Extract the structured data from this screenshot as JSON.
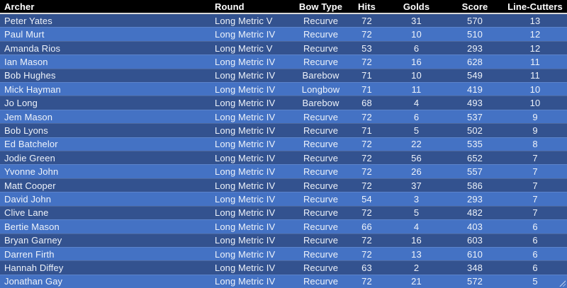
{
  "chart_data": {
    "type": "table",
    "columns": [
      {
        "key": "archer",
        "label": "Archer",
        "align": "left"
      },
      {
        "key": "round",
        "label": "Round",
        "align": "left"
      },
      {
        "key": "bow_type",
        "label": "Bow Type",
        "align": "center"
      },
      {
        "key": "hits",
        "label": "Hits",
        "align": "center"
      },
      {
        "key": "golds",
        "label": "Golds",
        "align": "center"
      },
      {
        "key": "score",
        "label": "Score",
        "align": "center"
      },
      {
        "key": "line_cutters",
        "label": "Line-Cutters",
        "align": "center"
      }
    ],
    "rows": [
      {
        "archer": "Peter Yates",
        "round": "Long Metric V",
        "bow_type": "Recurve",
        "hits": 72,
        "golds": 31,
        "score": 570,
        "line_cutters": 13
      },
      {
        "archer": "Paul Murt",
        "round": "Long Metric IV",
        "bow_type": "Recurve",
        "hits": 72,
        "golds": 10,
        "score": 510,
        "line_cutters": 12
      },
      {
        "archer": "Amanda Rios",
        "round": "Long Metric V",
        "bow_type": "Recurve",
        "hits": 53,
        "golds": 6,
        "score": 293,
        "line_cutters": 12
      },
      {
        "archer": "Ian Mason",
        "round": "Long Metric IV",
        "bow_type": "Recurve",
        "hits": 72,
        "golds": 16,
        "score": 628,
        "line_cutters": 11
      },
      {
        "archer": "Bob Hughes",
        "round": "Long Metric IV",
        "bow_type": "Barebow",
        "hits": 71,
        "golds": 10,
        "score": 549,
        "line_cutters": 11
      },
      {
        "archer": "Mick Hayman",
        "round": "Long Metric IV",
        "bow_type": "Longbow",
        "hits": 71,
        "golds": 11,
        "score": 419,
        "line_cutters": 10
      },
      {
        "archer": "Jo Long",
        "round": "Long Metric IV",
        "bow_type": "Barebow",
        "hits": 68,
        "golds": 4,
        "score": 493,
        "line_cutters": 10
      },
      {
        "archer": "Jem Mason",
        "round": "Long Metric IV",
        "bow_type": "Recurve",
        "hits": 72,
        "golds": 6,
        "score": 537,
        "line_cutters": 9
      },
      {
        "archer": "Bob Lyons",
        "round": "Long Metric IV",
        "bow_type": "Recurve",
        "hits": 71,
        "golds": 5,
        "score": 502,
        "line_cutters": 9
      },
      {
        "archer": "Ed Batchelor",
        "round": "Long Metric IV",
        "bow_type": "Recurve",
        "hits": 72,
        "golds": 22,
        "score": 535,
        "line_cutters": 8
      },
      {
        "archer": "Jodie Green",
        "round": "Long Metric IV",
        "bow_type": "Recurve",
        "hits": 72,
        "golds": 56,
        "score": 652,
        "line_cutters": 7
      },
      {
        "archer": "Yvonne John",
        "round": "Long Metric IV",
        "bow_type": "Recurve",
        "hits": 72,
        "golds": 26,
        "score": 557,
        "line_cutters": 7
      },
      {
        "archer": "Matt Cooper",
        "round": "Long Metric IV",
        "bow_type": "Recurve",
        "hits": 72,
        "golds": 37,
        "score": 586,
        "line_cutters": 7
      },
      {
        "archer": "David John",
        "round": "Long Metric IV",
        "bow_type": "Recurve",
        "hits": 54,
        "golds": 3,
        "score": 293,
        "line_cutters": 7
      },
      {
        "archer": "Clive Lane",
        "round": "Long Metric IV",
        "bow_type": "Recurve",
        "hits": 72,
        "golds": 5,
        "score": 482,
        "line_cutters": 7
      },
      {
        "archer": "Bertie Mason",
        "round": "Long Metric IV",
        "bow_type": "Recurve",
        "hits": 66,
        "golds": 4,
        "score": 403,
        "line_cutters": 6
      },
      {
        "archer": "Bryan Garney",
        "round": "Long Metric IV",
        "bow_type": "Recurve",
        "hits": 72,
        "golds": 16,
        "score": 603,
        "line_cutters": 6
      },
      {
        "archer": "Darren Firth",
        "round": "Long Metric IV",
        "bow_type": "Recurve",
        "hits": 72,
        "golds": 13,
        "score": 610,
        "line_cutters": 6
      },
      {
        "archer": "Hannah Diffey",
        "round": "Long Metric IV",
        "bow_type": "Recurve",
        "hits": 63,
        "golds": 2,
        "score": 348,
        "line_cutters": 6
      },
      {
        "archer": "Jonathan Gay",
        "round": "Long Metric IV",
        "bow_type": "Recurve",
        "hits": 72,
        "golds": 21,
        "score": 572,
        "line_cutters": 5
      }
    ],
    "layout": {
      "header_position": "top",
      "row_striping": "alternating, first data row dark",
      "grid": "subtle 1px light separators between rows"
    },
    "style": {
      "header_bg": "#000000",
      "header_text": "#FFFFFF",
      "row_dark": "#33528F",
      "row_light": "#4472C4",
      "row_text": "#EDF2FA"
    }
  }
}
